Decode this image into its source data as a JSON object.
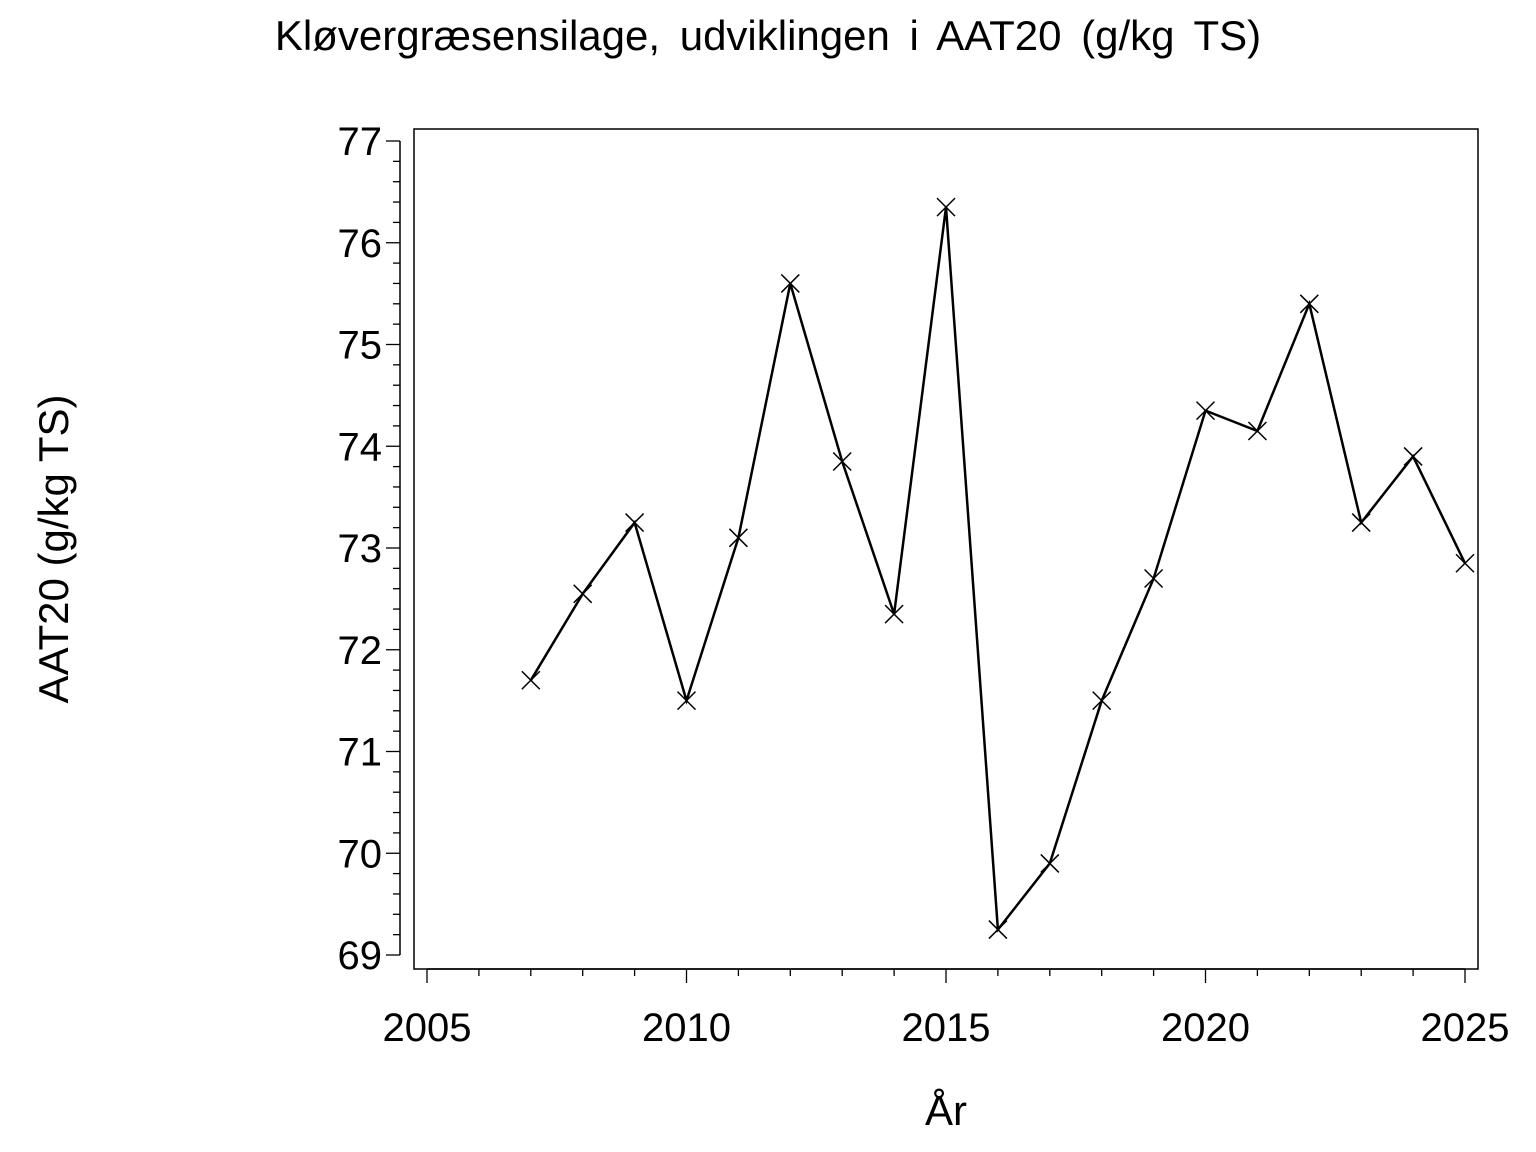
{
  "chart_data": {
    "type": "line",
    "title": "Kløvergræsensilage,  udviklingen  i  AAT20  (g/kg  TS)",
    "xlabel": "År",
    "ylabel": "AAT20  (g/kg  TS)",
    "xlim": [
      2005,
      2025
    ],
    "ylim": [
      69,
      77
    ],
    "xticks": [
      "2005",
      "2010",
      "2015",
      "2020",
      "2025"
    ],
    "yticks": [
      "69",
      "70",
      "71",
      "72",
      "73",
      "74",
      "75",
      "76",
      "77"
    ],
    "grid": false,
    "legend": "none",
    "marker": "x",
    "series": [
      {
        "x": [
          2007,
          2008,
          2009,
          2010,
          2011,
          2012,
          2013,
          2014,
          2015,
          2016,
          2017,
          2018,
          2019,
          2020,
          2021,
          2022,
          2023,
          2024,
          2025
        ],
        "y": [
          71.7,
          72.55,
          73.25,
          71.5,
          73.1,
          75.6,
          73.85,
          72.35,
          76.35,
          69.25,
          69.9,
          71.5,
          72.7,
          74.35,
          74.15,
          75.4,
          73.25,
          73.9,
          72.85
        ],
        "color": "#000000"
      }
    ]
  }
}
